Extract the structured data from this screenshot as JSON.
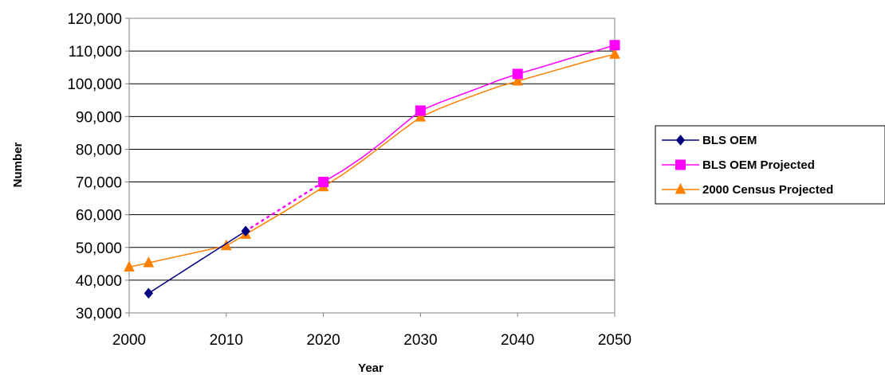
{
  "chart_data": {
    "type": "line",
    "title": "",
    "xlabel": "Year",
    "ylabel": "Number",
    "xlim": [
      2000,
      2050
    ],
    "ylim": [
      30000,
      120000
    ],
    "x_ticks": [
      2000,
      2010,
      2020,
      2030,
      2040,
      2050
    ],
    "x_tick_labels": [
      "2000",
      "2010",
      "2020",
      "2030",
      "2040",
      "2050"
    ],
    "y_ticks": [
      30000,
      40000,
      50000,
      60000,
      70000,
      80000,
      90000,
      100000,
      110000,
      120000
    ],
    "y_tick_labels": [
      "30,000",
      "40,000",
      "50,000",
      "60,000",
      "70,000",
      "80,000",
      "90,000",
      "100,000",
      "110,000",
      "120,000"
    ],
    "grid": "horizontal",
    "legend_position": "right",
    "series": [
      {
        "name": "BLS OEM",
        "color": "#000080",
        "marker": "diamond",
        "x": [
          2002,
          2012
        ],
        "y": [
          36000,
          55000
        ],
        "marked_x": [
          2002,
          2012
        ]
      },
      {
        "name": "BLS OEM Projected",
        "color": "#ff00ff",
        "marker": "square",
        "dashed_segment_x": [
          2012,
          2020
        ],
        "x": [
          2012,
          2020,
          2022,
          2024,
          2026,
          2028,
          2030,
          2032,
          2034,
          2036,
          2038,
          2040,
          2042,
          2044,
          2046,
          2048,
          2050
        ],
        "y": [
          55000,
          70000,
          73500,
          77500,
          82000,
          87000,
          91800,
          94300,
          96500,
          98700,
          101000,
          103000,
          104700,
          106500,
          108300,
          110000,
          111800
        ],
        "marked_x": [
          2020,
          2030,
          2040,
          2050
        ]
      },
      {
        "name": "2000 Census Projected",
        "color": "#ff8000",
        "marker": "triangle",
        "x": [
          2000,
          2002,
          2010,
          2012,
          2014,
          2016,
          2018,
          2020,
          2022,
          2024,
          2026,
          2028,
          2030,
          2032,
          2034,
          2036,
          2038,
          2040,
          2042,
          2044,
          2046,
          2048,
          2050
        ],
        "y": [
          44000,
          45300,
          50500,
          54000,
          57500,
          61000,
          64700,
          68500,
          72300,
          76500,
          81000,
          85500,
          89800,
          92500,
          94800,
          97000,
          99100,
          100800,
          102500,
          104200,
          105900,
          107600,
          109000
        ],
        "marked_x": [
          2000,
          2002,
          2010,
          2012,
          2020,
          2030,
          2040,
          2050
        ]
      }
    ]
  }
}
